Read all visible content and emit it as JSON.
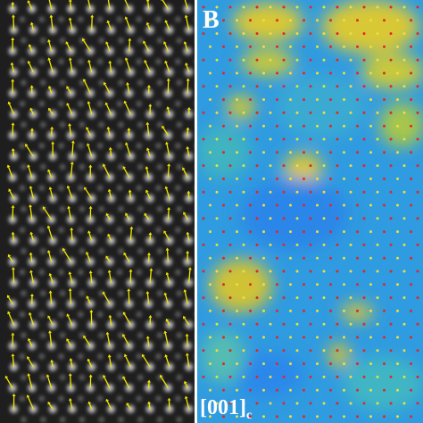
{
  "panel_label": "B",
  "direction": {
    "text": "[001]",
    "subscript": "c"
  }
}
